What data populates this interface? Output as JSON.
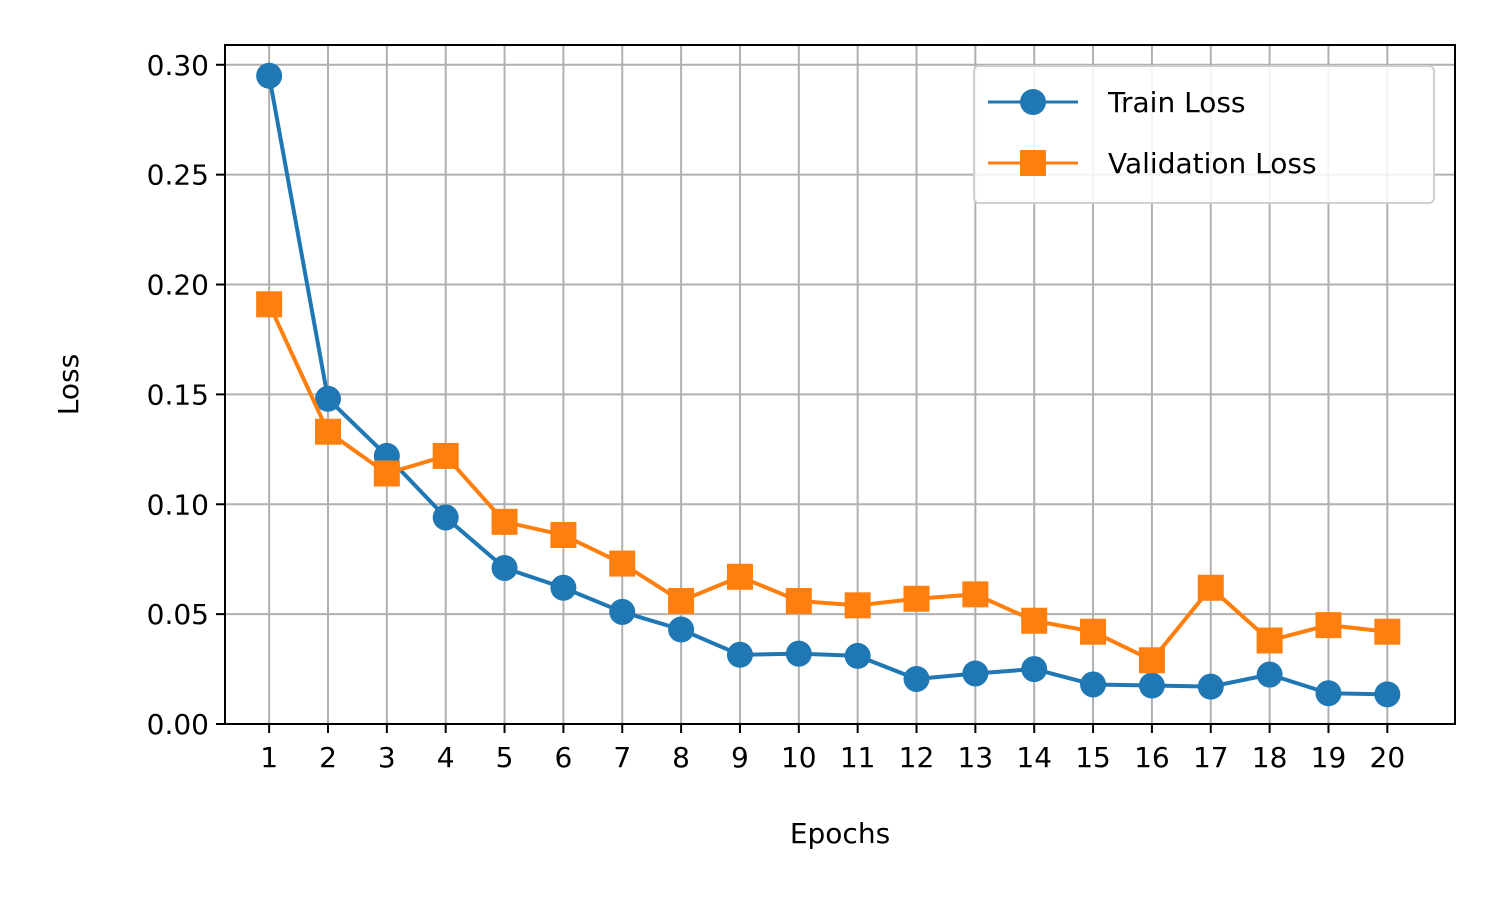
{
  "chart_data": {
    "type": "line",
    "title": "",
    "xlabel": "Epochs",
    "ylabel": "Loss",
    "x": [
      1,
      2,
      3,
      4,
      5,
      6,
      7,
      8,
      9,
      10,
      11,
      12,
      13,
      14,
      15,
      16,
      17,
      18,
      19,
      20
    ],
    "xticks": [
      "1",
      "2",
      "3",
      "4",
      "5",
      "6",
      "7",
      "8",
      "9",
      "10",
      "11",
      "12",
      "13",
      "14",
      "15",
      "16",
      "17",
      "18",
      "19",
      "20"
    ],
    "xlim": [
      0.25,
      21.15
    ],
    "ylim": [
      0,
      0.309
    ],
    "yticks": [
      0.0,
      0.05,
      0.1,
      0.15,
      0.2,
      0.25,
      0.3
    ],
    "ytick_labels": [
      "0.00",
      "0.05",
      "0.10",
      "0.15",
      "0.20",
      "0.25",
      "0.30"
    ],
    "grid": true,
    "legend_position": "top-right",
    "series": [
      {
        "name": "Train Loss",
        "color": "#1f77b4",
        "marker": "circle",
        "values": [
          0.295,
          0.148,
          0.122,
          0.094,
          0.071,
          0.062,
          0.051,
          0.043,
          0.0315,
          0.032,
          0.031,
          0.0205,
          0.023,
          0.025,
          0.018,
          0.0175,
          0.017,
          0.0225,
          0.014,
          0.0135
        ]
      },
      {
        "name": "Validation Loss",
        "color": "#ff7f0e",
        "marker": "square",
        "values": [
          0.191,
          0.133,
          0.114,
          0.122,
          0.092,
          0.086,
          0.073,
          0.056,
          0.067,
          0.056,
          0.054,
          0.057,
          0.059,
          0.047,
          0.042,
          0.029,
          0.062,
          0.038,
          0.045,
          0.042
        ]
      }
    ]
  }
}
